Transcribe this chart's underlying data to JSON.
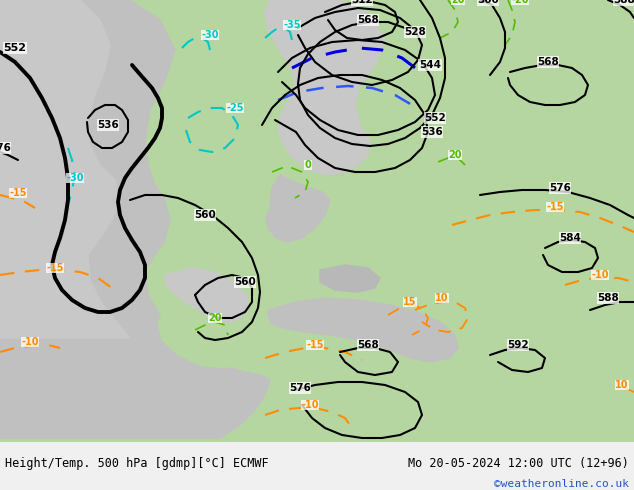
{
  "title_left": "Height/Temp. 500 hPa [gdmp][°C] ECMWF",
  "title_right": "Mo 20-05-2024 12:00 UTC (12+96)",
  "credit": "©weatheronline.co.uk",
  "bg_green": "#b5d6a0",
  "bg_gray": "#c0c0c0",
  "bg_light_gray": "#d0cece",
  "footer_bg": "#f0f0f0",
  "contour_black": "#000000",
  "contour_orange": "#ff8c00",
  "contour_cyan": "#00c8c8",
  "contour_blue": "#3355ff",
  "contour_blue_dark": "#0000dd",
  "contour_green": "#55bb00",
  "credit_color": "#2255cc",
  "title_fontsize": 8.5,
  "credit_fontsize": 8,
  "label_fs": 7
}
